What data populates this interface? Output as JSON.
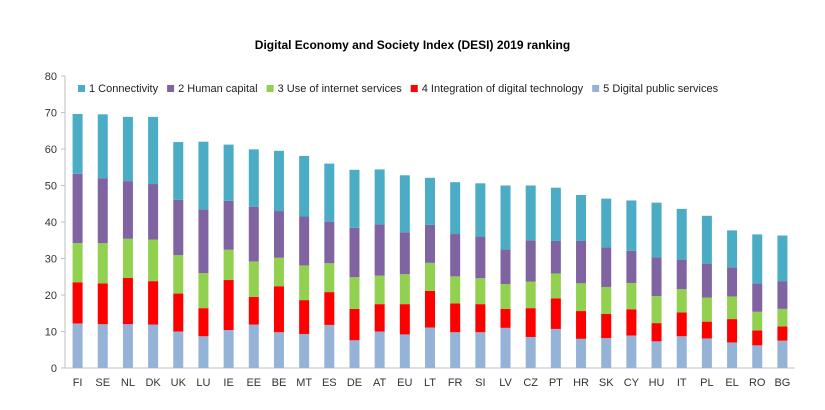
{
  "chart_data": {
    "type": "bar",
    "stacked": true,
    "title": "Digital Economy and Society Index  (DESI) 2019 ranking",
    "xlabel": "",
    "ylabel": "",
    "ylim": [
      0,
      80
    ],
    "yticks": [
      0,
      10,
      20,
      30,
      40,
      50,
      60,
      70,
      80
    ],
    "grid": false,
    "legend": "top",
    "categories": [
      "FI",
      "SE",
      "NL",
      "DK",
      "UK",
      "LU",
      "IE",
      "EE",
      "BE",
      "MT",
      "ES",
      "DE",
      "AT",
      "EU",
      "LT",
      "FR",
      "SI",
      "LV",
      "CZ",
      "PT",
      "HR",
      "SK",
      "CY",
      "HU",
      "IT",
      "PL",
      "EL",
      "RO",
      "BG"
    ],
    "series": [
      {
        "name": "5 Digital public services",
        "color": "#95b3d7",
        "values": [
          12.2,
          12.0,
          12.0,
          11.9,
          10.0,
          8.7,
          10.4,
          11.9,
          9.8,
          9.3,
          11.8,
          7.6,
          10.0,
          9.2,
          11.1,
          9.8,
          9.8,
          11.0,
          8.5,
          10.7,
          8.0,
          8.2,
          8.9,
          7.3,
          8.7,
          8.1,
          7.0,
          6.2,
          7.5
        ]
      },
      {
        "name": "4 Integration of digital technology",
        "color": "#ff0000",
        "values": [
          11.3,
          11.2,
          12.7,
          11.9,
          10.4,
          7.7,
          13.7,
          7.6,
          12.6,
          9.3,
          9.0,
          8.6,
          7.5,
          8.3,
          10.0,
          7.9,
          7.7,
          5.2,
          7.9,
          8.4,
          7.6,
          6.6,
          7.2,
          5.0,
          6.5,
          4.6,
          6.4,
          4.1,
          3.9
        ]
      },
      {
        "name": "3 Use of internet services",
        "color": "#92d050",
        "values": [
          10.7,
          11.0,
          10.7,
          11.4,
          10.5,
          9.6,
          8.3,
          9.7,
          7.8,
          9.5,
          7.9,
          8.7,
          7.8,
          8.2,
          7.7,
          7.4,
          7.1,
          6.8,
          7.3,
          6.8,
          7.6,
          7.4,
          7.2,
          7.4,
          6.4,
          6.6,
          6.2,
          5.1,
          4.8
        ]
      },
      {
        "name": "2 Human capital",
        "color": "#8064a2",
        "values": [
          19.0,
          17.8,
          15.8,
          15.2,
          15.2,
          17.4,
          13.4,
          15.0,
          12.8,
          13.4,
          11.4,
          13.5,
          14.0,
          11.5,
          10.4,
          11.6,
          11.4,
          9.5,
          11.3,
          8.9,
          11.6,
          10.8,
          8.8,
          10.6,
          8.1,
          9.3,
          8.0,
          7.8,
          7.5
        ]
      },
      {
        "name": "1 Connectivity",
        "color": "#4bacc6",
        "values": [
          16.4,
          17.5,
          17.6,
          18.4,
          15.8,
          18.6,
          15.4,
          15.7,
          16.5,
          16.6,
          15.9,
          15.9,
          15.1,
          15.6,
          12.9,
          14.2,
          14.6,
          17.5,
          15.0,
          14.6,
          12.6,
          13.4,
          13.8,
          15.0,
          13.9,
          13.1,
          10.1,
          13.4,
          12.6
        ]
      }
    ],
    "totals": [
      69.6,
      69.5,
      68.8,
      68.8,
      61.9,
      62.0,
      61.2,
      59.9,
      59.5,
      58.1,
      56.0,
      54.3,
      54.4,
      52.8,
      52.1,
      50.9,
      50.6,
      50.0,
      50.0,
      49.4,
      47.4,
      46.4,
      45.9,
      45.3,
      43.6,
      41.7,
      37.7,
      36.6,
      36.3
    ]
  }
}
